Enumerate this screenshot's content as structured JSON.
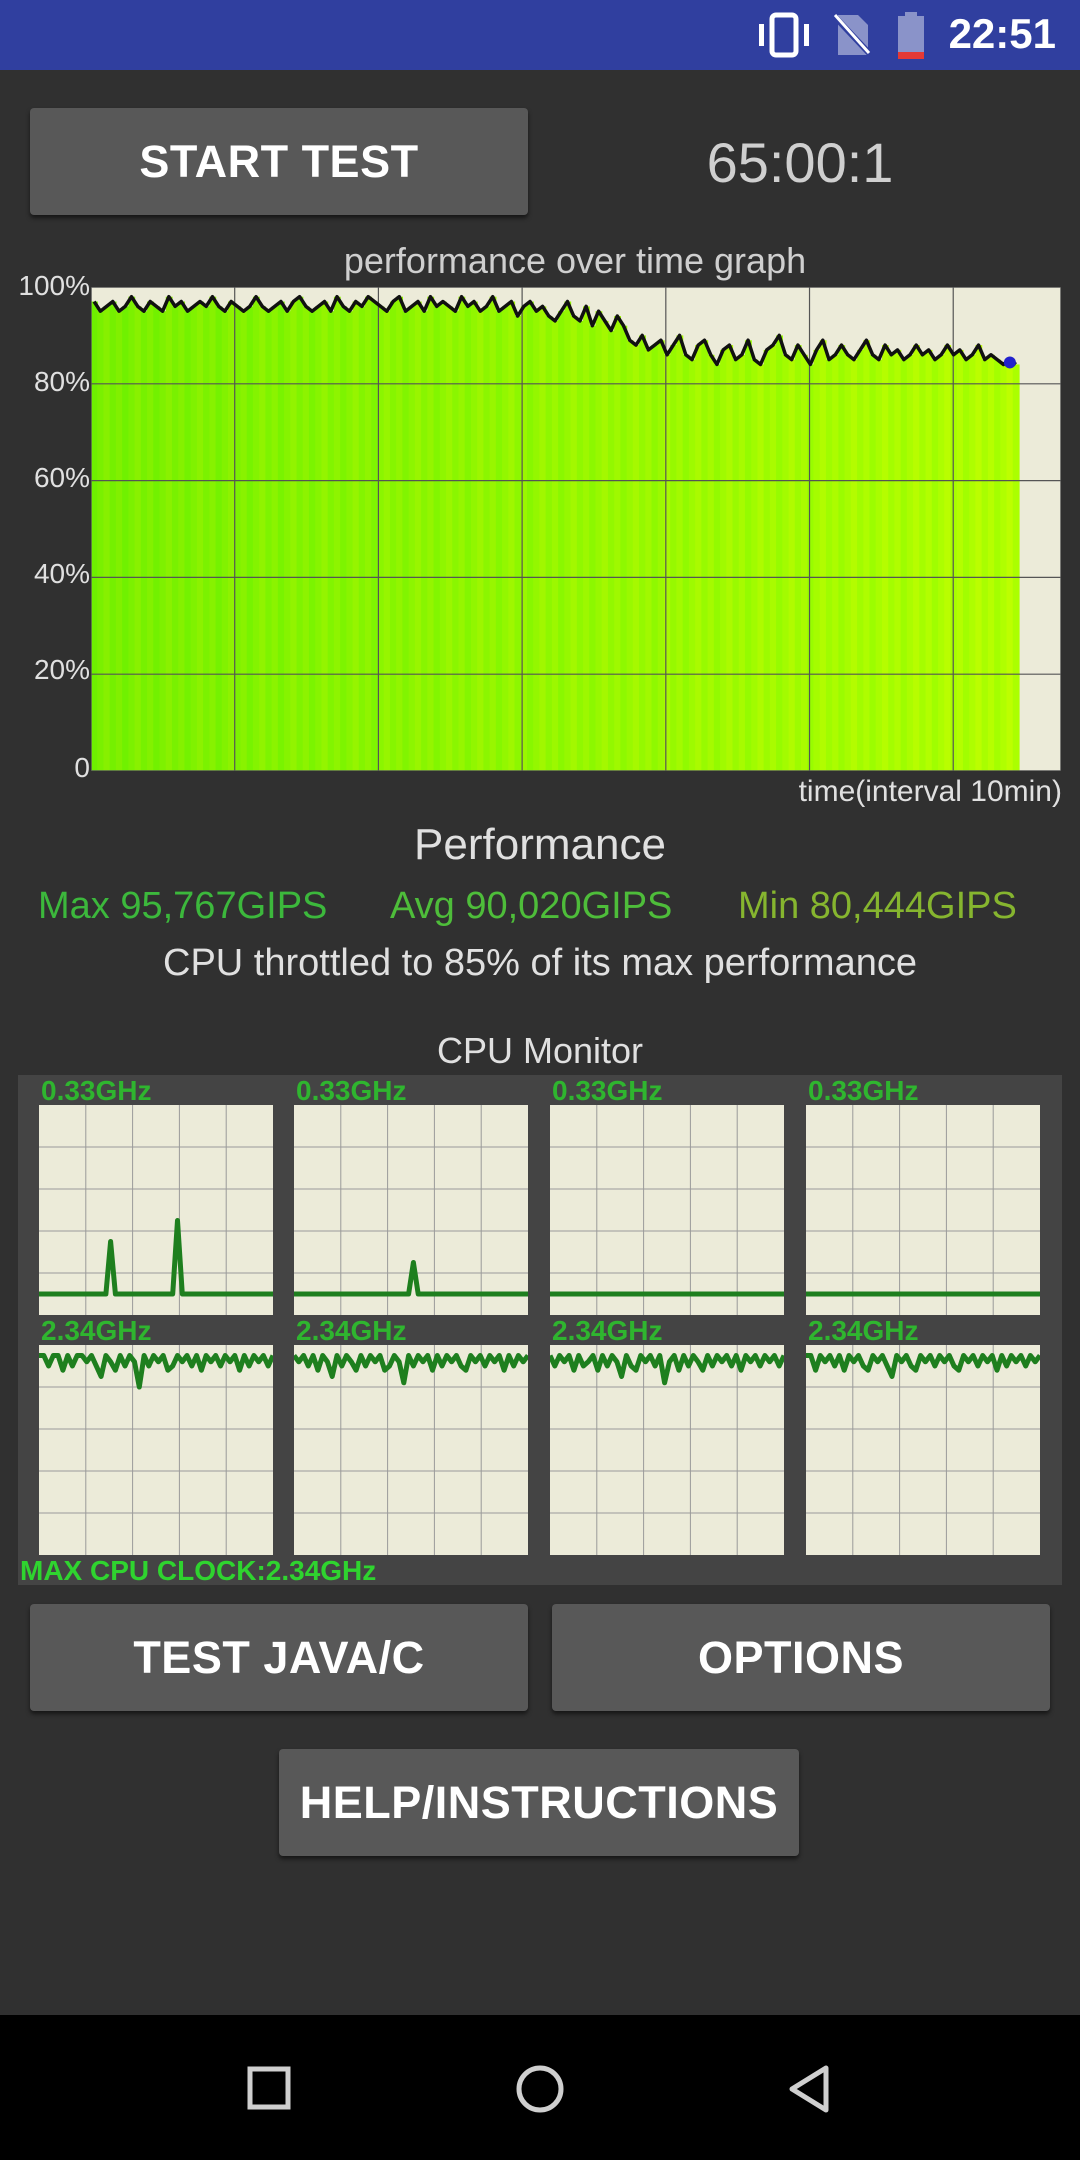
{
  "status_bar": {
    "time": "22:51",
    "icons": [
      "vibrate-icon",
      "no-sim-icon",
      "battery-low-icon"
    ]
  },
  "controls": {
    "start_test_label": "START TEST",
    "timer": "65:00:1",
    "test_java_c_label": "TEST JAVA/C",
    "options_label": "OPTIONS",
    "help_label": "HELP/INSTRUCTIONS"
  },
  "chart_data": {
    "type": "area",
    "title": "performance over time graph",
    "xlabel": "time(interval 10min)",
    "ylabel": "",
    "ylim": [
      0,
      100
    ],
    "yticks": [
      "100%",
      "80%",
      "60%",
      "40%",
      "20%",
      "0"
    ],
    "grid": true,
    "interval_minutes": 10,
    "series": [
      {
        "values": [
          97,
          95,
          96,
          97,
          95,
          96,
          98,
          96,
          95,
          97,
          96,
          95,
          98,
          96,
          97,
          95,
          96,
          97,
          96,
          98,
          96,
          95,
          97,
          96,
          95,
          96,
          98,
          96,
          95,
          96,
          97,
          95,
          97,
          98,
          96,
          95,
          96,
          97,
          95,
          98,
          96,
          95,
          97,
          96,
          98,
          97,
          96,
          95,
          97,
          98,
          95,
          96,
          97,
          95,
          98,
          96,
          97,
          96,
          95,
          98,
          96,
          97,
          95,
          96,
          98,
          95,
          96,
          97,
          94,
          96,
          97,
          95,
          96,
          94,
          93,
          95,
          97,
          94,
          93,
          96,
          92,
          95,
          93,
          91,
          94,
          92,
          89,
          88,
          90,
          87,
          88,
          89,
          86,
          88,
          90,
          86,
          85,
          88,
          89,
          86,
          84,
          87,
          88,
          85,
          86,
          89,
          85,
          84,
          87,
          88,
          90,
          86,
          85,
          88,
          86,
          84,
          87,
          89,
          85,
          86,
          88,
          86,
          85,
          87,
          89,
          86,
          85,
          88,
          86,
          87,
          85,
          86,
          88,
          86,
          87,
          85,
          86,
          88,
          86,
          87,
          85,
          86,
          88,
          85,
          86,
          85,
          84,
          85,
          84
        ]
      }
    ]
  },
  "performance": {
    "title": "Performance",
    "max_text": "Max 95,767GIPS",
    "avg_text": "Avg 90,020GIPS",
    "min_text": "Min 80,444GIPS",
    "throttle_text": "CPU throttled to 85% of its max performance"
  },
  "cpu_monitor": {
    "title": "CPU Monitor",
    "max_clock": "MAX CPU CLOCK:2.34GHz",
    "cores": [
      {
        "freq": "0.33GHz",
        "values": [
          10,
          10,
          10,
          10,
          10,
          10,
          10,
          10,
          10,
          10,
          10,
          10,
          10,
          10,
          10,
          35,
          10,
          10,
          10,
          10,
          10,
          10,
          10,
          10,
          10,
          10,
          10,
          10,
          10,
          45,
          10,
          10,
          10,
          10,
          10,
          10,
          10,
          10,
          10,
          10,
          10,
          10,
          10,
          10,
          10,
          10,
          10,
          10,
          10,
          10
        ]
      },
      {
        "freq": "0.33GHz",
        "values": [
          10,
          10,
          10,
          10,
          10,
          10,
          10,
          10,
          10,
          10,
          10,
          10,
          10,
          10,
          10,
          10,
          10,
          10,
          10,
          10,
          10,
          10,
          10,
          10,
          10,
          25,
          10,
          10,
          10,
          10,
          10,
          10,
          10,
          10,
          10,
          10,
          10,
          10,
          10,
          10,
          10,
          10,
          10,
          10,
          10,
          10,
          10,
          10,
          10,
          10
        ]
      },
      {
        "freq": "0.33GHz",
        "values": [
          10,
          10,
          10,
          10,
          10,
          10,
          10,
          10,
          10,
          10,
          10,
          10,
          10,
          10,
          10,
          10,
          10,
          10,
          10,
          10,
          10,
          10,
          10,
          10,
          10,
          10,
          10,
          10,
          10,
          10,
          10,
          10,
          10,
          10,
          10,
          10,
          10,
          10,
          10,
          10,
          10,
          10,
          10,
          10,
          10,
          10,
          10,
          10,
          10,
          10
        ]
      },
      {
        "freq": "0.33GHz",
        "values": [
          10,
          10,
          10,
          10,
          10,
          10,
          10,
          10,
          10,
          10,
          10,
          10,
          10,
          10,
          10,
          10,
          10,
          10,
          10,
          10,
          10,
          10,
          10,
          10,
          10,
          10,
          10,
          10,
          10,
          10,
          10,
          10,
          10,
          10,
          10,
          10,
          10,
          10,
          10,
          10,
          10,
          10,
          10,
          10,
          10,
          10,
          10,
          10,
          10,
          10
        ]
      },
      {
        "freq": "2.34GHz",
        "values": [
          95,
          95,
          90,
          95,
          95,
          88,
          95,
          90,
          95,
          95,
          92,
          95,
          90,
          85,
          95,
          92,
          88,
          95,
          90,
          95,
          92,
          80,
          95,
          90,
          95,
          92,
          95,
          88,
          90,
          95,
          92,
          95,
          90,
          95,
          88,
          95,
          92,
          95,
          90,
          95,
          92,
          95,
          88,
          95,
          90,
          95,
          92,
          95,
          90,
          95
        ]
      },
      {
        "freq": "2.34GHz",
        "values": [
          95,
          92,
          95,
          90,
          95,
          88,
          95,
          92,
          85,
          95,
          90,
          95,
          92,
          88,
          95,
          90,
          95,
          92,
          95,
          88,
          90,
          95,
          92,
          82,
          95,
          90,
          95,
          92,
          95,
          88,
          95,
          90,
          95,
          92,
          95,
          90,
          88,
          95,
          92,
          95,
          90,
          95,
          92,
          95,
          88,
          95,
          90,
          95,
          92,
          95
        ]
      },
      {
        "freq": "2.34GHz",
        "values": [
          95,
          90,
          95,
          92,
          95,
          88,
          95,
          90,
          92,
          95,
          88,
          95,
          90,
          95,
          92,
          85,
          95,
          90,
          88,
          95,
          92,
          95,
          90,
          95,
          82,
          92,
          95,
          88,
          95,
          90,
          95,
          92,
          88,
          95,
          90,
          95,
          92,
          95,
          90,
          95,
          88,
          95,
          92,
          95,
          90,
          95,
          92,
          95,
          90,
          95
        ]
      },
      {
        "freq": "2.34GHz",
        "values": [
          95,
          95,
          88,
          95,
          92,
          95,
          90,
          95,
          88,
          95,
          92,
          95,
          90,
          88,
          95,
          92,
          95,
          90,
          85,
          95,
          92,
          95,
          90,
          88,
          95,
          92,
          95,
          90,
          95,
          92,
          95,
          90,
          88,
          95,
          92,
          95,
          90,
          95,
          92,
          95,
          88,
          95,
          90,
          95,
          92,
          95,
          90,
          95,
          92,
          95
        ]
      }
    ]
  },
  "navbar": {
    "icons": [
      "recents-icon",
      "home-icon",
      "back-icon"
    ]
  }
}
